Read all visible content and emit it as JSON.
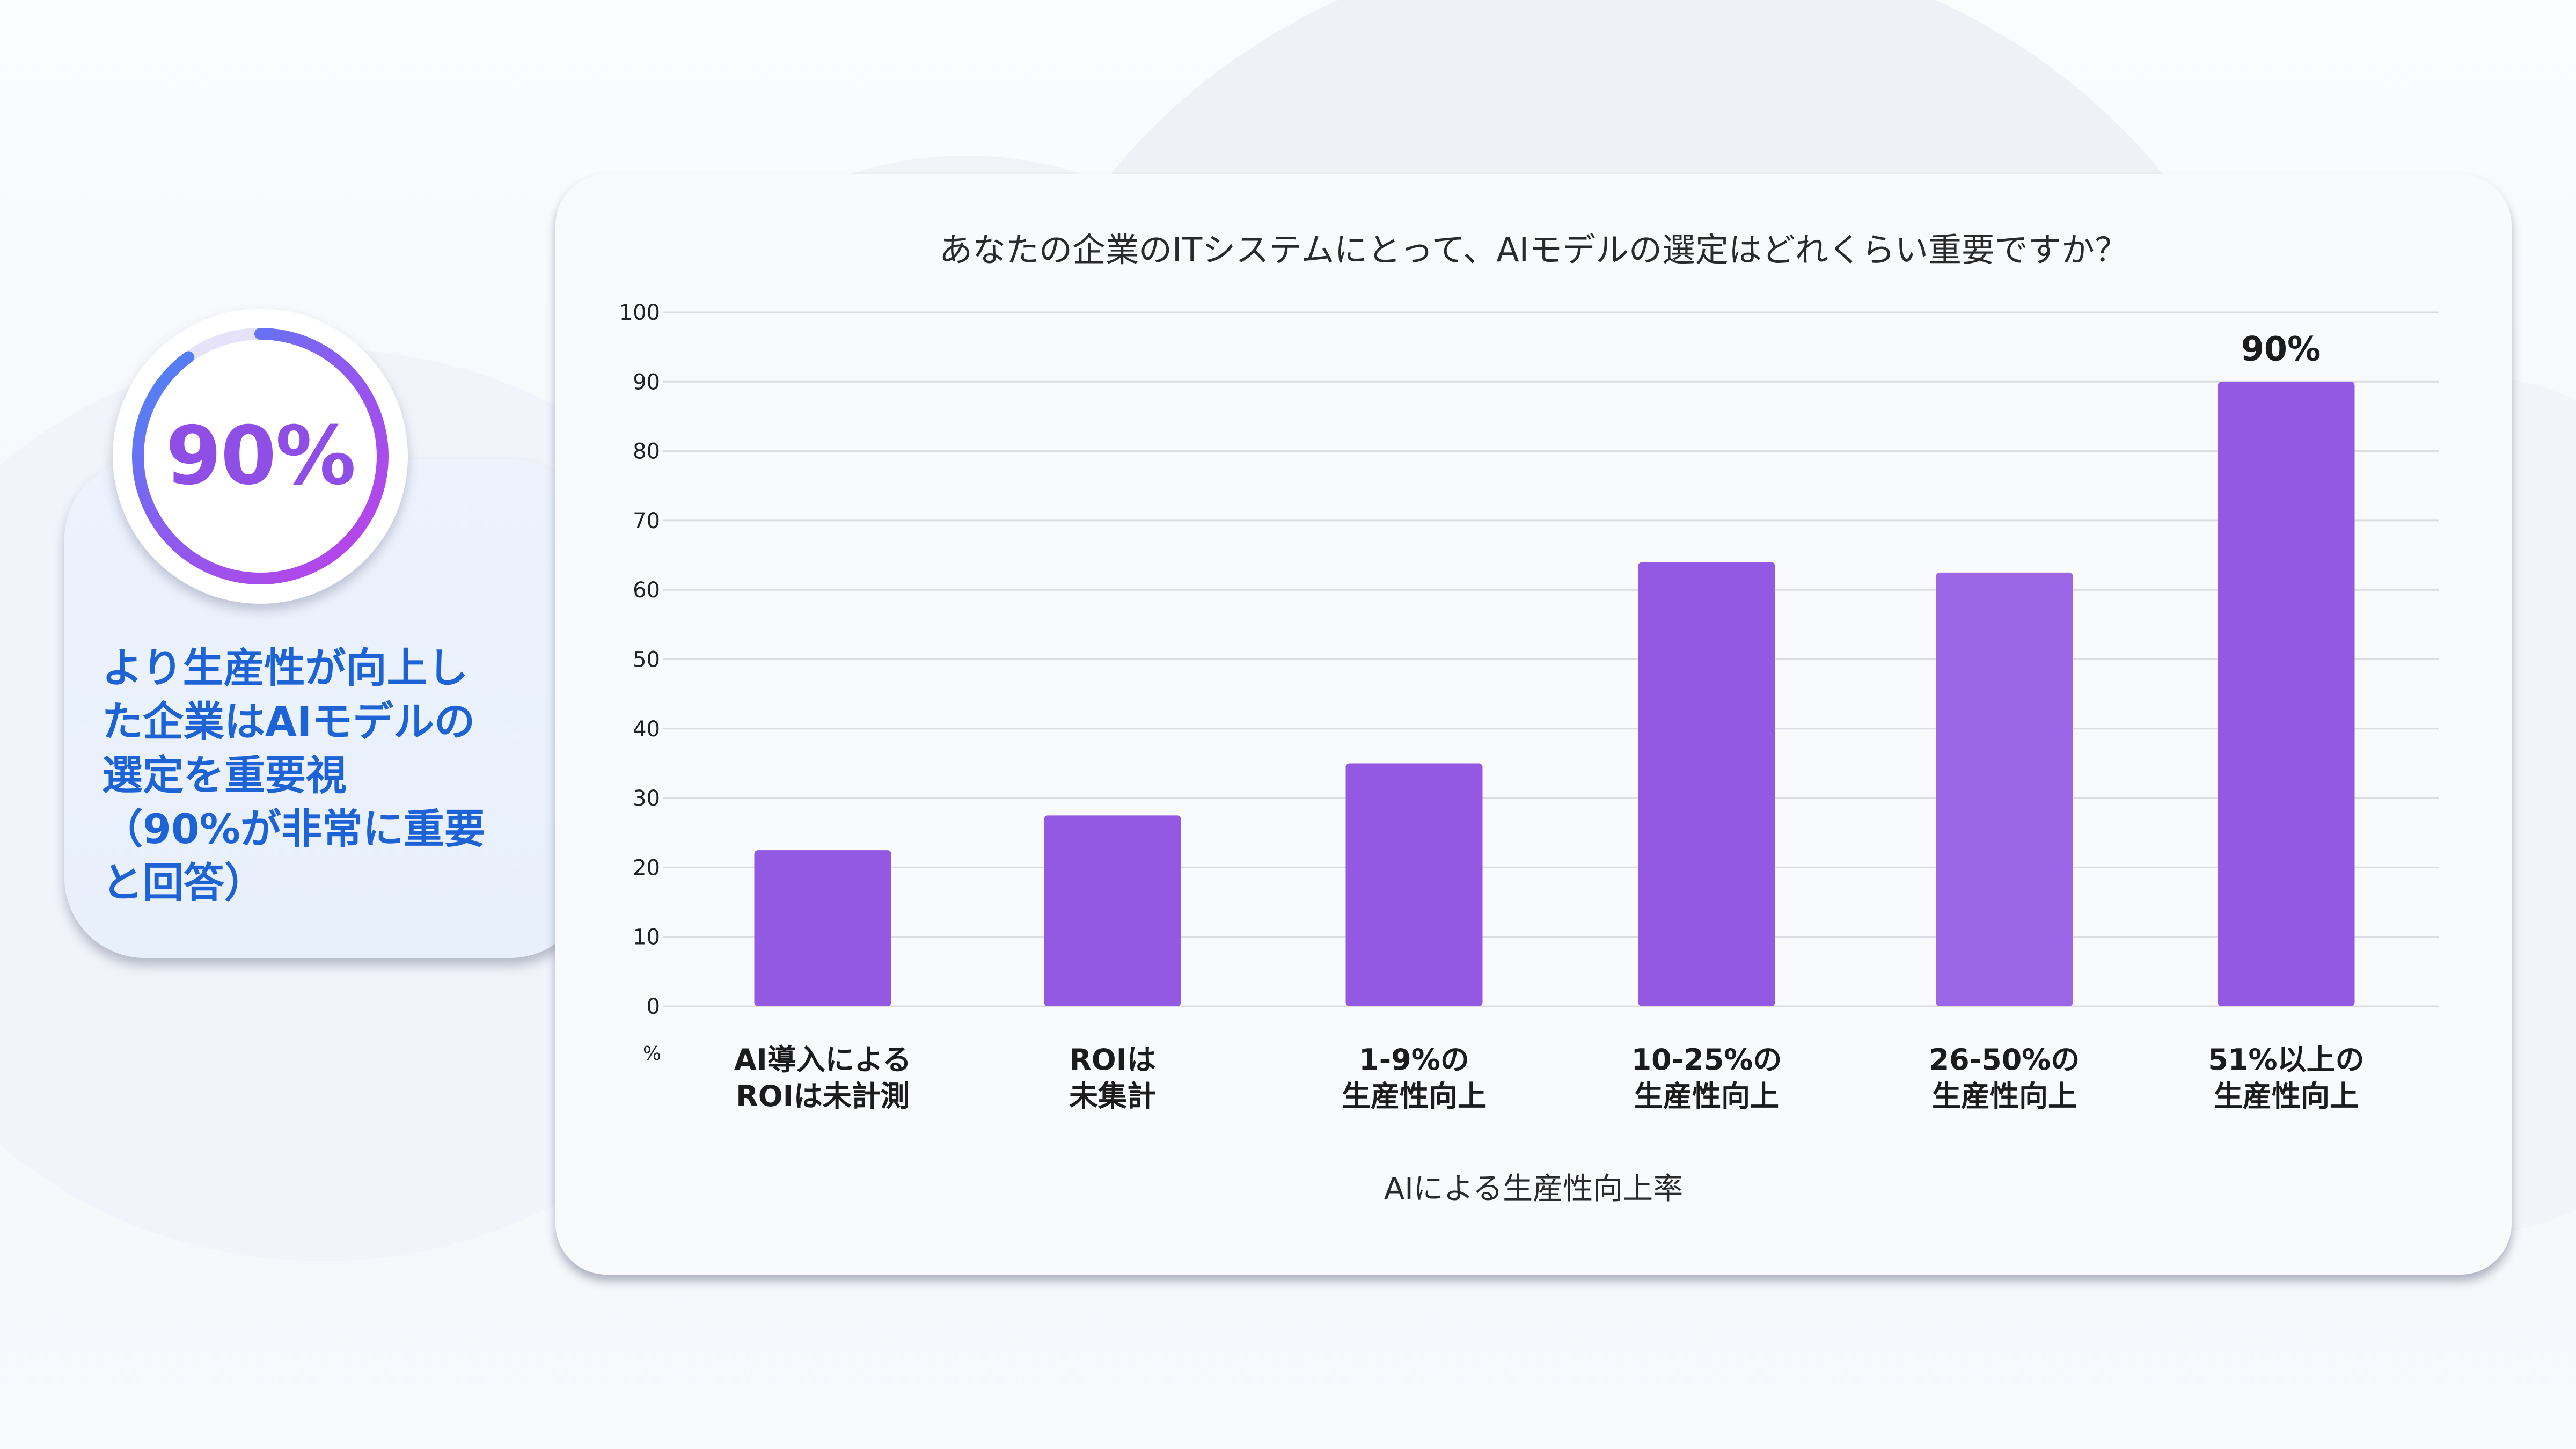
{
  "highlight": {
    "stat": "90%",
    "text": "より生産性が向上し\nた企業はAIモデルの\n選定を重要視\n（90%が非常に重要\nと回答）",
    "ring_fraction": 0.9,
    "ring_colors": [
      "#c13fe8",
      "#8a5cf0",
      "#3d8ef5"
    ],
    "text_color": "#1d63d6"
  },
  "chart_data": {
    "type": "bar",
    "title": "あなたの企業のITシステムにとって、AIモデルの選定はどれくらい重要ですか？",
    "xlabel": "AIによる生産性向上率",
    "ylabel": "%",
    "ylim": [
      0,
      100
    ],
    "yticks": [
      0,
      10,
      20,
      30,
      40,
      50,
      60,
      70,
      80,
      90,
      100
    ],
    "grid": true,
    "categories": [
      [
        "AI導入による",
        "ROIは未計測"
      ],
      [
        "ROIは",
        "未集計"
      ],
      [
        "1-9%の",
        "生産性向上"
      ],
      [
        "10-25%の",
        "生産性向上"
      ],
      [
        "26-50%の",
        "生産性向上"
      ],
      [
        "51%以上の",
        "生産性向上"
      ]
    ],
    "values": [
      22.5,
      27.5,
      35,
      64,
      62.5,
      90
    ],
    "data_labels": [
      "",
      "",
      "",
      "",
      "",
      "90%"
    ],
    "bar_colors": [
      "#9359e3",
      "#9359e3",
      "#9359e3",
      "#9359e3",
      "#9c66e6",
      "#9359e3"
    ]
  }
}
